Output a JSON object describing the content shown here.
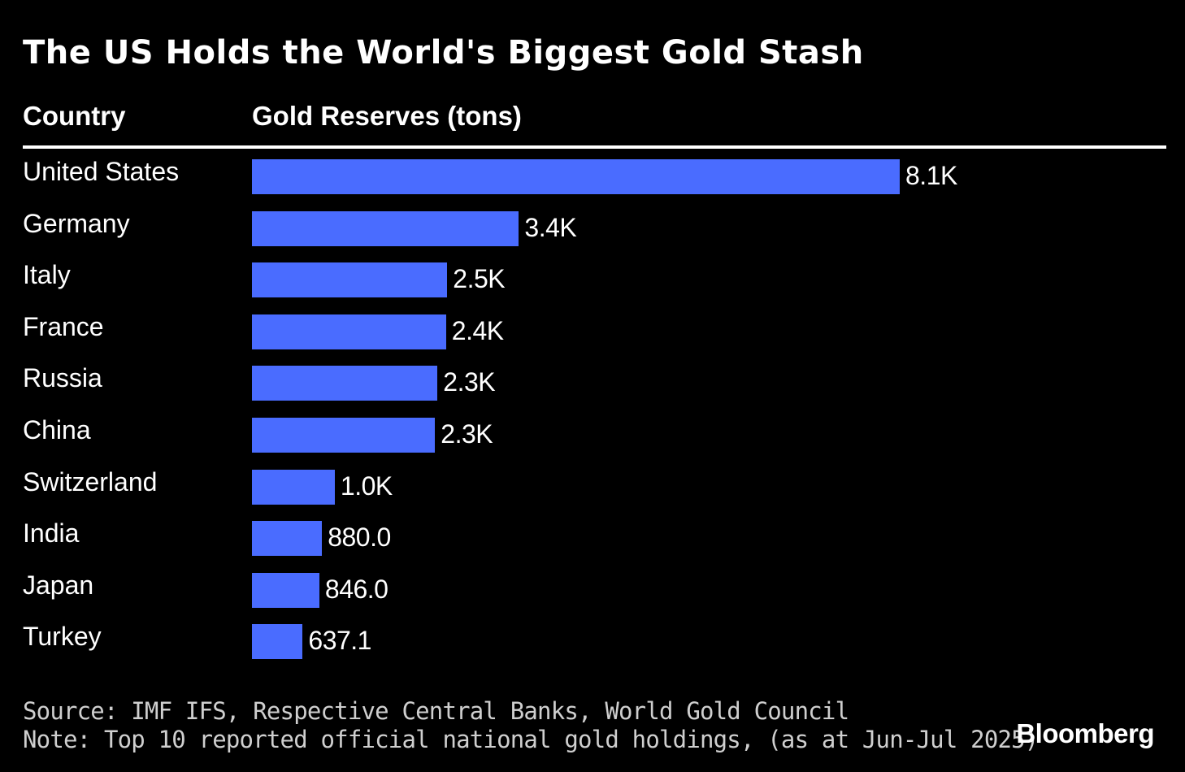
{
  "chart_data": {
    "type": "bar",
    "orientation": "horizontal",
    "title": "The US Holds the World's Biggest Gold Stash",
    "column_headers": {
      "category": "Country",
      "value": "Gold Reserves (tons)"
    },
    "categories": [
      "United States",
      "Germany",
      "Italy",
      "France",
      "Russia",
      "China",
      "Switzerland",
      "India",
      "Japan",
      "Turkey"
    ],
    "values": [
      8133,
      3351,
      2452,
      2437,
      2330,
      2299,
      1040,
      880.0,
      846.0,
      637.1
    ],
    "value_labels": [
      "8.1K",
      "3.4K",
      "2.5K",
      "2.4K",
      "2.3K",
      "2.3K",
      "1.0K",
      "880.0",
      "846.0",
      "637.1"
    ],
    "bar_color": "#4a6cff",
    "grid": false,
    "legend": "none"
  },
  "footer": {
    "source": "Source: IMF IFS, Respective Central Banks, World Gold Council",
    "note": "Note: Top 10 reported official national gold holdings, (as at Jun-Jul 2025)",
    "brand": "Bloomberg"
  },
  "colors": {
    "background": "#000000",
    "text": "#ffffff",
    "footer_text": "#cfcfcf"
  }
}
